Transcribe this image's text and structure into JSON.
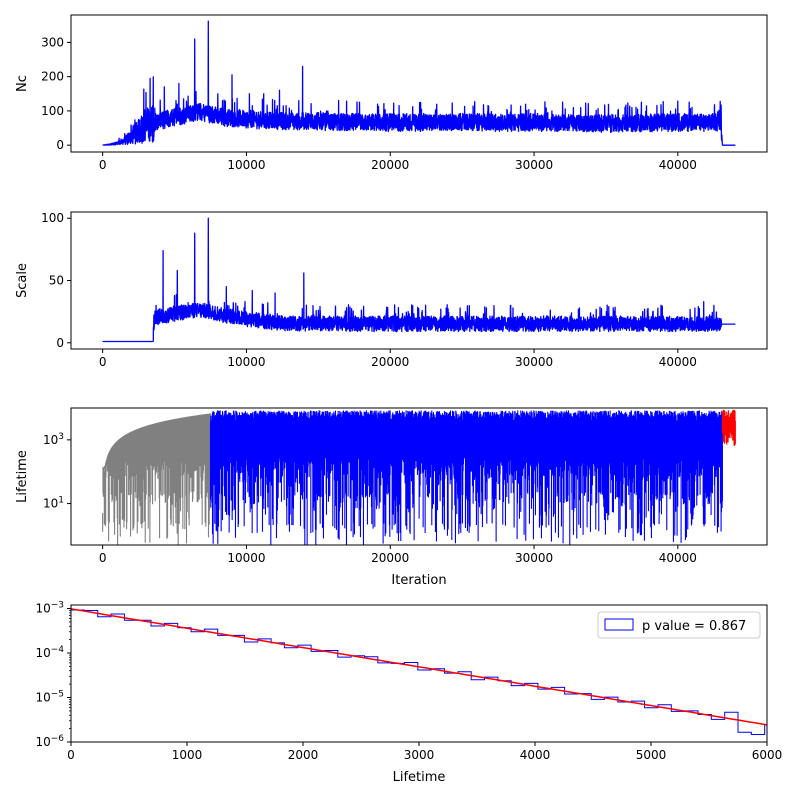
{
  "chart_data": [
    {
      "type": "line",
      "panel": "nc",
      "ylabel": "Nc",
      "xlabel": "",
      "xlim": [
        -2200,
        46200
      ],
      "ylim": [
        -20,
        380
      ],
      "xticks": [
        0,
        10000,
        20000,
        30000,
        40000
      ],
      "xtick_labels": [
        "0",
        "10000",
        "20000",
        "30000",
        "40000"
      ],
      "yticks": [
        0,
        100,
        200,
        300
      ],
      "ytick_labels": [
        "0",
        "100",
        "200",
        "300"
      ],
      "series": [
        {
          "color": "#0000ff",
          "x": [
            0,
            500,
            1000,
            1500,
            2000,
            2500,
            3000,
            3500,
            3600,
            4000,
            4500,
            5000,
            5500,
            6000,
            6500,
            7000,
            7400,
            8000,
            8500,
            9000,
            10000,
            11000,
            12000,
            13000,
            14000,
            15000,
            17000,
            20000,
            25000,
            30000,
            35000,
            40000,
            42000,
            43000,
            43100,
            44000
          ],
          "y": [
            0,
            2,
            5,
            12,
            25,
            40,
            55,
            60,
            65,
            70,
            75,
            80,
            85,
            90,
            95,
            95,
            90,
            85,
            80,
            78,
            75,
            72,
            70,
            68,
            70,
            68,
            65,
            65,
            65,
            65,
            62,
            65,
            65,
            65,
            0,
            0
          ],
          "noise": 25,
          "spikes": [
            [
              3300,
              195
            ],
            [
              4300,
              170
            ],
            [
              5300,
              180
            ],
            [
              6400,
              310
            ],
            [
              7350,
              362
            ],
            [
              8000,
              150
            ],
            [
              9000,
              205
            ],
            [
              10200,
              150
            ],
            [
              11200,
              150
            ],
            [
              12300,
              160
            ],
            [
              13900,
              230
            ]
          ]
        }
      ]
    },
    {
      "type": "line",
      "panel": "scale",
      "ylabel": "Scale",
      "xlabel": "",
      "xlim": [
        -2200,
        46200
      ],
      "ylim": [
        -5,
        105
      ],
      "xticks": [
        0,
        10000,
        20000,
        30000,
        40000
      ],
      "xtick_labels": [
        "0",
        "10000",
        "20000",
        "30000",
        "40000"
      ],
      "yticks": [
        0,
        50,
        100
      ],
      "ytick_labels": [
        "0",
        "50",
        "100"
      ],
      "series": [
        {
          "color": "#0000ff",
          "x": [
            0,
            3500,
            3600,
            4500,
            5500,
            6500,
            7400,
            8500,
            9500,
            10500,
            12000,
            13500,
            15000,
            20000,
            30000,
            40000,
            43000,
            44000
          ],
          "y": [
            1,
            1,
            20,
            22,
            24,
            26,
            25,
            22,
            20,
            18,
            16,
            15,
            15,
            15,
            15,
            15,
            15,
            15
          ],
          "noise": 6,
          "spikes": [
            [
              4200,
              74
            ],
            [
              5200,
              58
            ],
            [
              6400,
              88
            ],
            [
              7350,
              100
            ],
            [
              8600,
              45
            ],
            [
              10400,
              42
            ],
            [
              12000,
              40
            ],
            [
              14000,
              56
            ],
            [
              41800,
              33
            ]
          ]
        }
      ]
    },
    {
      "type": "line",
      "panel": "lifetime",
      "ylabel": "Lifetime",
      "xlabel": "Iteration",
      "yscale": "log",
      "xlim": [
        -2200,
        46200
      ],
      "ylim": [
        0.5,
        10000
      ],
      "xticks": [
        0,
        10000,
        20000,
        30000,
        40000
      ],
      "xtick_labels": [
        "0",
        "10000",
        "20000",
        "30000",
        "40000"
      ],
      "yticks": [
        10,
        1000
      ],
      "ytick_labels": [
        "10^1",
        "10^3"
      ],
      "segments": [
        {
          "color": "#808080",
          "x_range": [
            0,
            7500
          ],
          "envelope_start": 5,
          "envelope_end": 6500
        },
        {
          "color": "#0000ff",
          "x_range": [
            7500,
            43100
          ],
          "envelope_start": 6000,
          "envelope_end": 6000
        },
        {
          "color": "#ff0000",
          "x_range": [
            43100,
            44000
          ],
          "envelope_start": 5000,
          "envelope_end": 6500
        }
      ]
    },
    {
      "type": "histogram",
      "panel": "lifetime-hist",
      "xlabel": "Lifetime",
      "ylabel": "",
      "yscale": "log",
      "xlim": [
        0,
        6000
      ],
      "ylim": [
        1e-06,
        0.0012
      ],
      "xticks": [
        0,
        1000,
        2000,
        3000,
        4000,
        5000,
        6000
      ],
      "xtick_labels": [
        "0",
        "1000",
        "2000",
        "3000",
        "4000",
        "5000",
        "6000"
      ],
      "yticks": [
        1e-06,
        1e-05,
        0.0001,
        0.001
      ],
      "ytick_labels": [
        "10^-6",
        "10^-5",
        "10^-4",
        "10^-3"
      ],
      "bin_width": 115,
      "bins_start": 0,
      "fit": {
        "color": "#ff0000",
        "y0": 0.00098,
        "decay": 1000
      },
      "step_color": "#0000ff",
      "legend": {
        "label": "p value = 0.867",
        "position": "top-right"
      },
      "hist_jitter": [
        0,
        0.04,
        -0.05,
        0.06,
        -0.03,
        0.02,
        -0.06,
        0.05,
        0.0,
        -0.04,
        0.07,
        -0.02,
        0.03,
        -0.07,
        0.05,
        0.01,
        -0.05,
        0.06,
        -0.03,
        0.04,
        -0.06,
        0.02,
        0.05,
        -0.04,
        0.0,
        0.07,
        -0.05,
        0.03,
        -0.02,
        0.06,
        -0.07,
        0.04,
        0.01,
        -0.05,
        0.05,
        -0.03,
        0.06,
        -0.04,
        0.02,
        -0.06,
        0.04,
        -0.02,
        0.05,
        -0.05,
        0.07,
        -0.03,
        0.03,
        0.0,
        -0.06,
        0.15,
        -0.25,
        -0.25
      ]
    }
  ]
}
